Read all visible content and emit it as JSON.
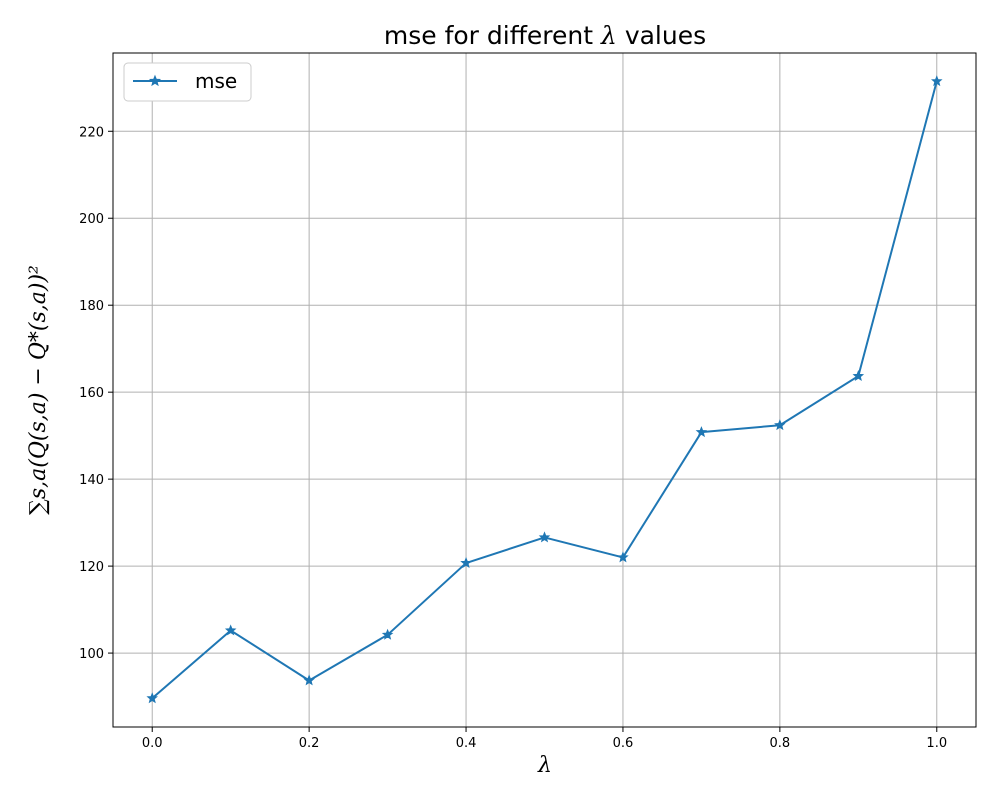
{
  "chart_data": {
    "type": "line",
    "title_prefix": "mse for different ",
    "title_symbol": "λ",
    "title_suffix": " values",
    "xlabel": "λ",
    "ylabel": "∑s,a(Q(s,a) − Q*(s,a))²",
    "xlim": [
      -0.05,
      1.05
    ],
    "ylim": [
      83,
      238
    ],
    "xticks": [
      0.0,
      0.2,
      0.4,
      0.6,
      0.8,
      1.0
    ],
    "xtick_labels": [
      "0.0",
      "0.2",
      "0.4",
      "0.6",
      "0.8",
      "1.0"
    ],
    "yticks": [
      100,
      120,
      140,
      160,
      180,
      200,
      220
    ],
    "ytick_labels": [
      "100",
      "120",
      "140",
      "160",
      "180",
      "200",
      "220"
    ],
    "grid": true,
    "legend_position": "upper-left",
    "series": [
      {
        "name": "mse",
        "color": "#1f77b4",
        "marker": "star",
        "x": [
          0.0,
          0.1,
          0.2,
          0.3,
          0.4,
          0.5,
          0.6,
          0.7,
          0.8,
          0.9,
          1.0
        ],
        "y": [
          89.6,
          105.2,
          93.7,
          104.2,
          120.7,
          126.6,
          122.0,
          150.8,
          152.4,
          163.7,
          231.5
        ]
      }
    ]
  }
}
